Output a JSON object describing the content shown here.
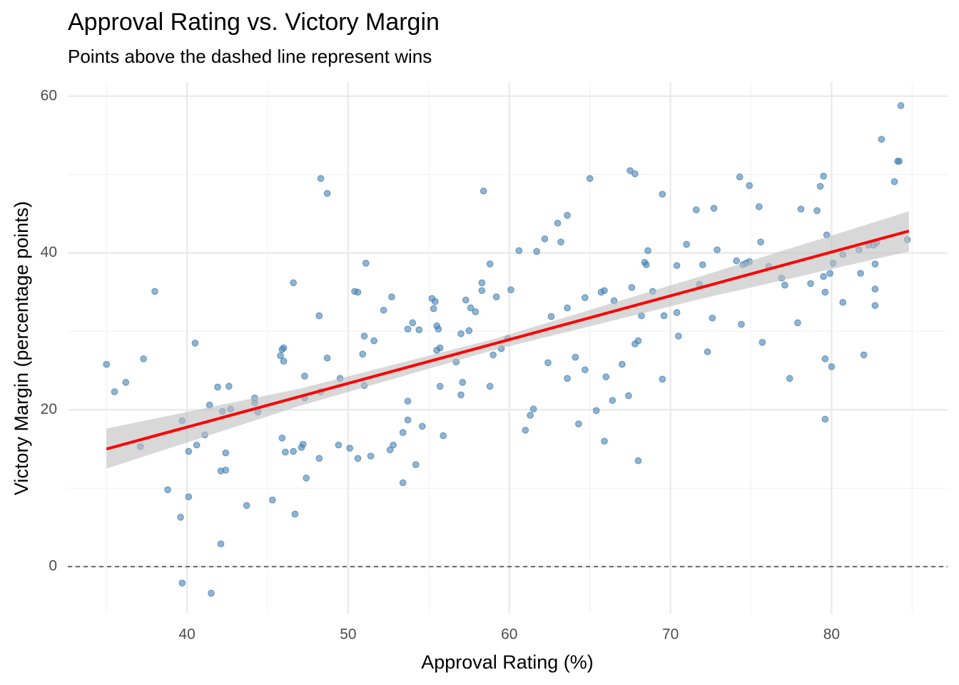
{
  "chart_data": {
    "type": "scatter",
    "title": "Approval Rating vs. Victory Margin",
    "subtitle": "Points above the dashed line represent wins",
    "x_label": "Approval Rating (%)",
    "y_label": "Victory Margin (percentage points)",
    "color": "#4682b4",
    "x": [
      35.0,
      35.5,
      36.2,
      37.1,
      37.3,
      38.0,
      38.8,
      39.6,
      39.7,
      39.7,
      40.1,
      40.1,
      40.5,
      40.6,
      41.1,
      41.4,
      41.5,
      41.9,
      42.1,
      42.1,
      42.2,
      42.4,
      42.4,
      42.6,
      42.7,
      43.7,
      44.2,
      44.2,
      44.4,
      45.3,
      45.9,
      45.8,
      45.9,
      46.0,
      46.0,
      46.1,
      46.6,
      46.6,
      46.7,
      47.1,
      47.2,
      47.3,
      47.3,
      47.4,
      48.2,
      48.2,
      48.3,
      48.3,
      48.7,
      48.7,
      49.4,
      49.5,
      50.1,
      50.4,
      50.6,
      50.6,
      50.9,
      51.0,
      51.0,
      51.1,
      51.4,
      51.6,
      52.2,
      52.6,
      52.7,
      52.8,
      53.4,
      53.4,
      53.7,
      53.7,
      53.7,
      54.0,
      54.2,
      54.4,
      54.6,
      55.2,
      55.3,
      55.4,
      55.5,
      55.5,
      55.6,
      55.7,
      55.7,
      55.9,
      56.7,
      57.0,
      57.0,
      57.1,
      57.3,
      57.5,
      57.6,
      57.9,
      58.3,
      58.4,
      58.3,
      58.8,
      58.8,
      59.0,
      59.2,
      59.5,
      59.9,
      60.1,
      60.6,
      61.0,
      61.3,
      61.5,
      61.7,
      62.2,
      62.4,
      62.6,
      63.0,
      63.2,
      63.6,
      63.6,
      63.6,
      64.1,
      64.3,
      64.7,
      64.7,
      65.0,
      65.4,
      65.7,
      65.9,
      65.9,
      66.0,
      66.4,
      66.5,
      67.0,
      67.4,
      67.5,
      67.6,
      67.8,
      67.8,
      68.0,
      68.0,
      68.2,
      68.4,
      68.5,
      68.6,
      68.9,
      69.5,
      69.5,
      69.6,
      70.4,
      70.5,
      70.4,
      71.0,
      71.6,
      71.8,
      72.0,
      72.3,
      72.6,
      72.7,
      72.9,
      74.1,
      74.3,
      74.4,
      74.5,
      74.7,
      74.9,
      74.9,
      75.5,
      75.6,
      75.7,
      76.1,
      76.9,
      77.1,
      77.4,
      77.9,
      78.1,
      78.7,
      79.1,
      79.3,
      79.5,
      79.5,
      79.6,
      79.6,
      79.6,
      79.7,
      79.9,
      80.0,
      80.1,
      80.7,
      80.7,
      81.7,
      81.8,
      82.0,
      82.3,
      82.6,
      82.7,
      82.7,
      82.7,
      82.8,
      83.1,
      83.9,
      84.1,
      84.2,
      84.3,
      84.7
    ],
    "y": [
      25.8,
      22.3,
      23.5,
      15.3,
      26.5,
      35.1,
      9.8,
      6.3,
      18.6,
      -2.1,
      14.7,
      8.9,
      28.5,
      15.5,
      16.8,
      20.6,
      -3.4,
      22.9,
      12.2,
      2.9,
      19.8,
      14.5,
      12.3,
      23.0,
      20.1,
      7.8,
      21.5,
      20.9,
      19.7,
      8.5,
      16.4,
      26.9,
      27.7,
      26.2,
      27.9,
      14.6,
      36.2,
      14.7,
      6.7,
      15.2,
      15.6,
      24.3,
      21.5,
      11.3,
      32.0,
      13.8,
      22.3,
      49.5,
      47.6,
      26.6,
      15.5,
      24.0,
      15.1,
      35.1,
      35.0,
      13.8,
      27.1,
      29.4,
      23.1,
      38.7,
      14.1,
      28.8,
      32.7,
      14.9,
      34.4,
      15.5,
      17.1,
      10.7,
      18.7,
      30.3,
      21.1,
      31.1,
      13.0,
      30.2,
      17.9,
      34.2,
      32.9,
      33.8,
      30.7,
      27.6,
      30.3,
      27.9,
      23.0,
      16.7,
      26.1,
      29.7,
      21.9,
      23.5,
      34.0,
      30.1,
      33.0,
      32.5,
      35.2,
      47.9,
      36.2,
      23.0,
      38.6,
      27.0,
      34.4,
      27.8,
      29.1,
      35.3,
      40.3,
      17.4,
      19.3,
      20.1,
      40.2,
      41.8,
      26.0,
      31.9,
      43.8,
      41.4,
      44.8,
      33.0,
      24.0,
      26.7,
      18.2,
      34.3,
      25.1,
      49.5,
      19.9,
      35.0,
      16.0,
      35.2,
      24.2,
      21.2,
      33.9,
      25.8,
      21.8,
      50.5,
      35.6,
      50.1,
      28.4,
      28.8,
      13.5,
      32.0,
      38.8,
      38.5,
      40.3,
      35.1,
      47.5,
      23.9,
      32.0,
      38.4,
      29.4,
      32.4,
      41.1,
      45.5,
      36.0,
      38.5,
      27.4,
      31.7,
      45.7,
      40.4,
      39.0,
      49.7,
      30.9,
      38.5,
      38.7,
      38.9,
      48.6,
      45.9,
      41.4,
      28.6,
      38.3,
      36.8,
      35.9,
      24.0,
      31.1,
      45.6,
      36.1,
      45.4,
      48.5,
      49.8,
      37.0,
      26.5,
      35.0,
      18.8,
      42.3,
      37.4,
      25.5,
      38.7,
      39.8,
      33.7,
      40.4,
      37.4,
      27.0,
      41.0,
      41.0,
      35.4,
      33.3,
      38.6,
      41.3,
      54.5,
      49.1,
      51.7,
      51.7,
      58.8,
      41.7
    ],
    "fit": {
      "x": [
        35,
        84.8
      ],
      "y": [
        15,
        42.8
      ],
      "color": "#ff0000"
    },
    "band": {
      "x": [
        35,
        47,
        59,
        72,
        84.8
      ],
      "lower": [
        12.5,
        20.5,
        27.6,
        34.2,
        40.2
      ],
      "upper": [
        17.6,
        22.7,
        29.0,
        37.1,
        45.3
      ],
      "color": "#bebebe"
    },
    "reference_line": 0,
    "xlim": [
      32.6,
      87.2
    ],
    "ylim": [
      -6.0,
      61.8
    ],
    "xticks": [
      40,
      50,
      60,
      70,
      80
    ],
    "yticks": [
      0,
      20,
      40,
      60
    ],
    "xminor": [
      35,
      45,
      55,
      65,
      75,
      85
    ],
    "yminor": [
      10,
      30,
      50
    ],
    "grid": true
  }
}
